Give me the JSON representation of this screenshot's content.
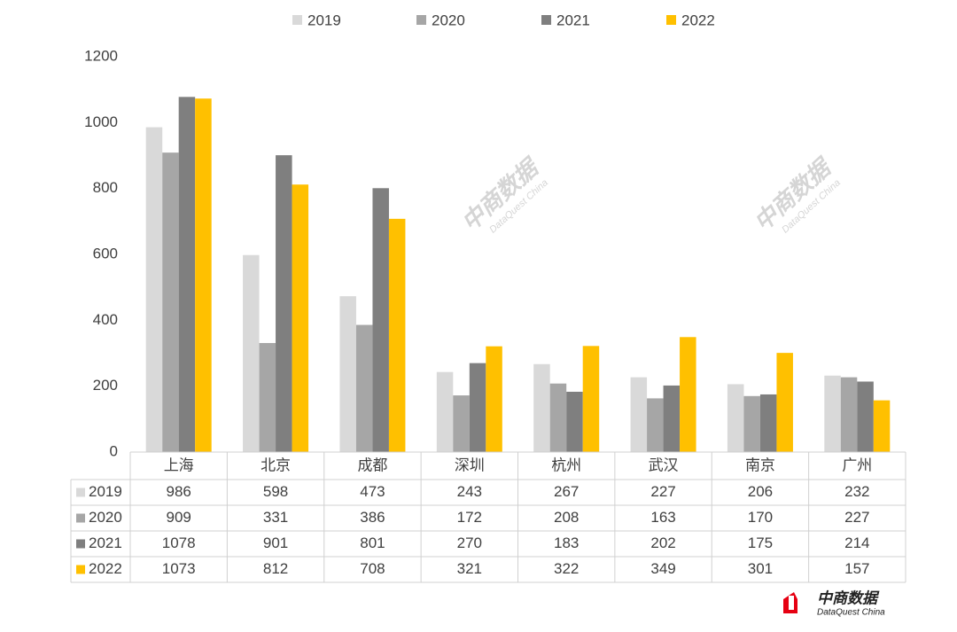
{
  "chart_data": {
    "type": "bar",
    "categories": [
      "上海",
      "北京",
      "成都",
      "深圳",
      "杭州",
      "武汉",
      "南京",
      "广州"
    ],
    "series": [
      {
        "name": "2019",
        "color": "#d9d9d9",
        "values": [
          986,
          598,
          473,
          243,
          267,
          227,
          206,
          232
        ]
      },
      {
        "name": "2020",
        "color": "#a6a6a6",
        "values": [
          909,
          331,
          386,
          172,
          208,
          163,
          170,
          227
        ]
      },
      {
        "name": "2021",
        "color": "#7f7f7f",
        "values": [
          1078,
          901,
          801,
          270,
          183,
          202,
          175,
          214
        ]
      },
      {
        "name": "2022",
        "color": "#ffc000",
        "values": [
          1073,
          812,
          708,
          321,
          322,
          349,
          301,
          157
        ]
      }
    ],
    "ylim": [
      0,
      1200
    ],
    "yticks": [
      0,
      200,
      400,
      600,
      800,
      1000,
      1200
    ],
    "grid": false,
    "legend": "top",
    "data_table": true
  },
  "watermark": {
    "name": "中商数据",
    "subtitle": "DataQuest China"
  }
}
